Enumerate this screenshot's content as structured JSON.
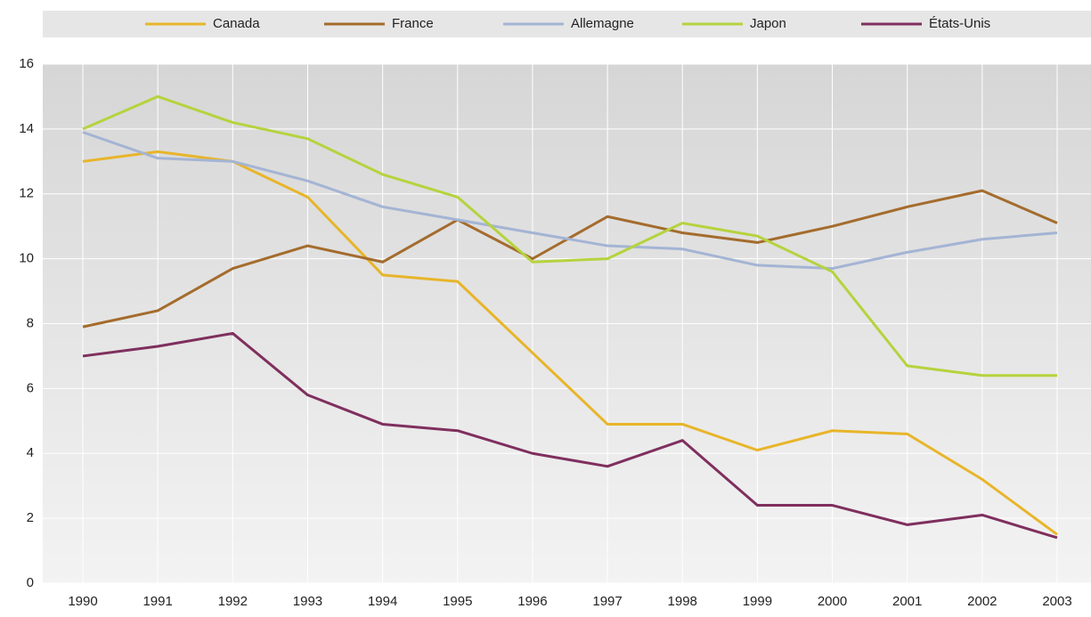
{
  "chart_data": {
    "type": "line",
    "x": [
      1990,
      1991,
      1992,
      1993,
      1994,
      1995,
      1996,
      1997,
      1998,
      1999,
      2000,
      2001,
      2002,
      2003
    ],
    "series": [
      {
        "name": "Canada",
        "color": "#e8b52a",
        "values": [
          13.0,
          13.3,
          13.0,
          11.9,
          9.5,
          9.3,
          7.1,
          4.9,
          4.9,
          4.1,
          4.7,
          4.6,
          3.2,
          1.5
        ]
      },
      {
        "name": "France",
        "color": "#a46c2d",
        "values": [
          7.9,
          8.4,
          9.7,
          10.4,
          9.9,
          11.2,
          10.0,
          11.3,
          10.8,
          10.5,
          11.0,
          11.6,
          12.1,
          11.1
        ]
      },
      {
        "name": "Allemagne",
        "color": "#a4b4d4",
        "values": [
          13.9,
          13.1,
          13.0,
          12.4,
          11.6,
          11.2,
          10.8,
          10.4,
          10.3,
          9.8,
          9.7,
          10.2,
          10.6,
          10.8
        ]
      },
      {
        "name": "Japon",
        "color": "#b5d33d",
        "values": [
          14.0,
          15.0,
          14.2,
          13.7,
          12.6,
          11.9,
          9.9,
          10.0,
          11.1,
          10.7,
          9.6,
          6.7,
          6.4,
          6.4
        ]
      },
      {
        "name": "États-Unis",
        "color": "#7f2f5e",
        "values": [
          7.0,
          7.3,
          7.7,
          5.8,
          4.9,
          4.7,
          4.0,
          3.6,
          4.4,
          2.4,
          2.4,
          1.8,
          2.1,
          1.4
        ]
      }
    ],
    "ylim": [
      0,
      16
    ],
    "yticks": [
      0,
      2,
      4,
      6,
      8,
      10,
      12,
      14,
      16
    ],
    "grid": true
  }
}
